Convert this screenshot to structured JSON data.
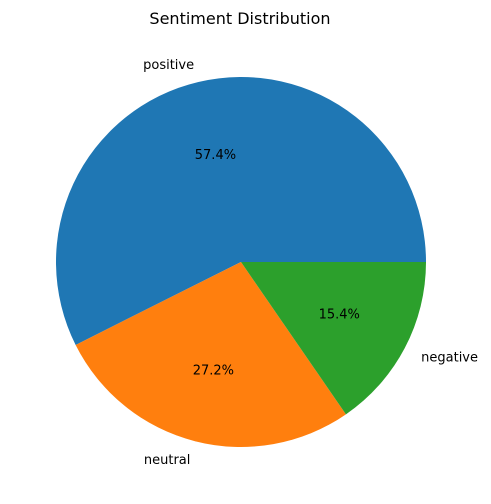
{
  "chart_data": {
    "type": "pie",
    "title": "Sentiment Distribution",
    "categories": [
      "positive",
      "neutral",
      "negative"
    ],
    "values": [
      57.4,
      27.2,
      15.4
    ],
    "value_labels": [
      "57.4%",
      "27.2%",
      "15.4%"
    ],
    "colors": [
      "#1f77b4",
      "#ff7f0e",
      "#2ca02c"
    ],
    "start_angle_deg": 0,
    "direction": "counterclockwise",
    "legend": "none"
  }
}
